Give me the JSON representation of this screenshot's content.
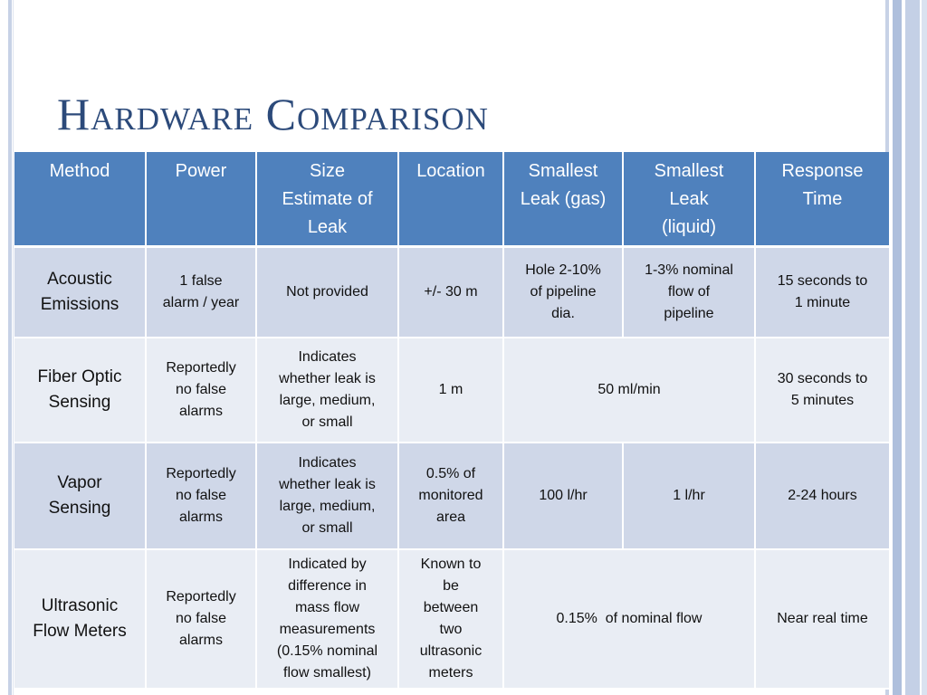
{
  "slide": {
    "title": "Hardware Comparison"
  },
  "table": {
    "headers": {
      "method": "Method",
      "power": "Power",
      "size_line1": "Size",
      "size_line2": "Estimate of",
      "size_line3": "Leak",
      "location": "Location",
      "leak_gas_line1": "Smallest",
      "leak_gas_line2": "Leak (gas)",
      "leak_liquid_line1": "Smallest",
      "leak_liquid_line2": "Leak",
      "leak_liquid_line3": "(liquid)",
      "response_line1": "Response",
      "response_line2": "Time"
    },
    "rows": [
      {
        "method_l1": "Acoustic",
        "method_l2": "Emissions",
        "power_l1": "1 false",
        "power_l2": "alarm / year",
        "size": "Not provided",
        "location": "+/- 30 m",
        "gas_l1": "Hole 2-10%",
        "gas_l2": "of pipeline",
        "gas_l3": "dia.",
        "liquid_l1": "1-3% nominal",
        "liquid_l2": "flow of",
        "liquid_l3": "pipeline",
        "response_l1": "15 seconds to",
        "response_l2": "1 minute"
      },
      {
        "method_l1": "Fiber Optic",
        "method_l2": "Sensing",
        "power_l1": "Reportedly",
        "power_l2": "no false",
        "power_l3": "alarms",
        "size_l1": "Indicates",
        "size_l2": "whether leak is",
        "size_l3": "large, medium,",
        "size_l4": "or small",
        "location": "1 m",
        "leak_merged": "50 ml/min",
        "response_l1": "30 seconds to",
        "response_l2": "5 minutes"
      },
      {
        "method_l1": "Vapor",
        "method_l2": "Sensing",
        "power_l1": "Reportedly",
        "power_l2": "no false",
        "power_l3": "alarms",
        "size_l1": "Indicates",
        "size_l2": "whether leak is",
        "size_l3": "large, medium,",
        "size_l4": "or small",
        "location_l1": "0.5% of",
        "location_l2": "monitored",
        "location_l3": "area",
        "gas": "100 l/hr",
        "liquid": "1 l/hr",
        "response": "2-24 hours"
      },
      {
        "method_l1": "Ultrasonic",
        "method_l2": "Flow Meters",
        "power_l1": "Reportedly",
        "power_l2": "no false",
        "power_l3": "alarms",
        "size_l1": "Indicated by",
        "size_l2": "difference in",
        "size_l3": "mass flow",
        "size_l4": "measurements",
        "size_l5": "(0.15% nominal",
        "size_l6": "flow smallest)",
        "location_l1": "Known to",
        "location_l2": "be",
        "location_l3": "between",
        "location_l4": "two",
        "location_l5": "ultrasonic",
        "location_l6": "meters",
        "leak_merged": "0.15%  of nominal flow",
        "response": "Near real time"
      }
    ]
  }
}
